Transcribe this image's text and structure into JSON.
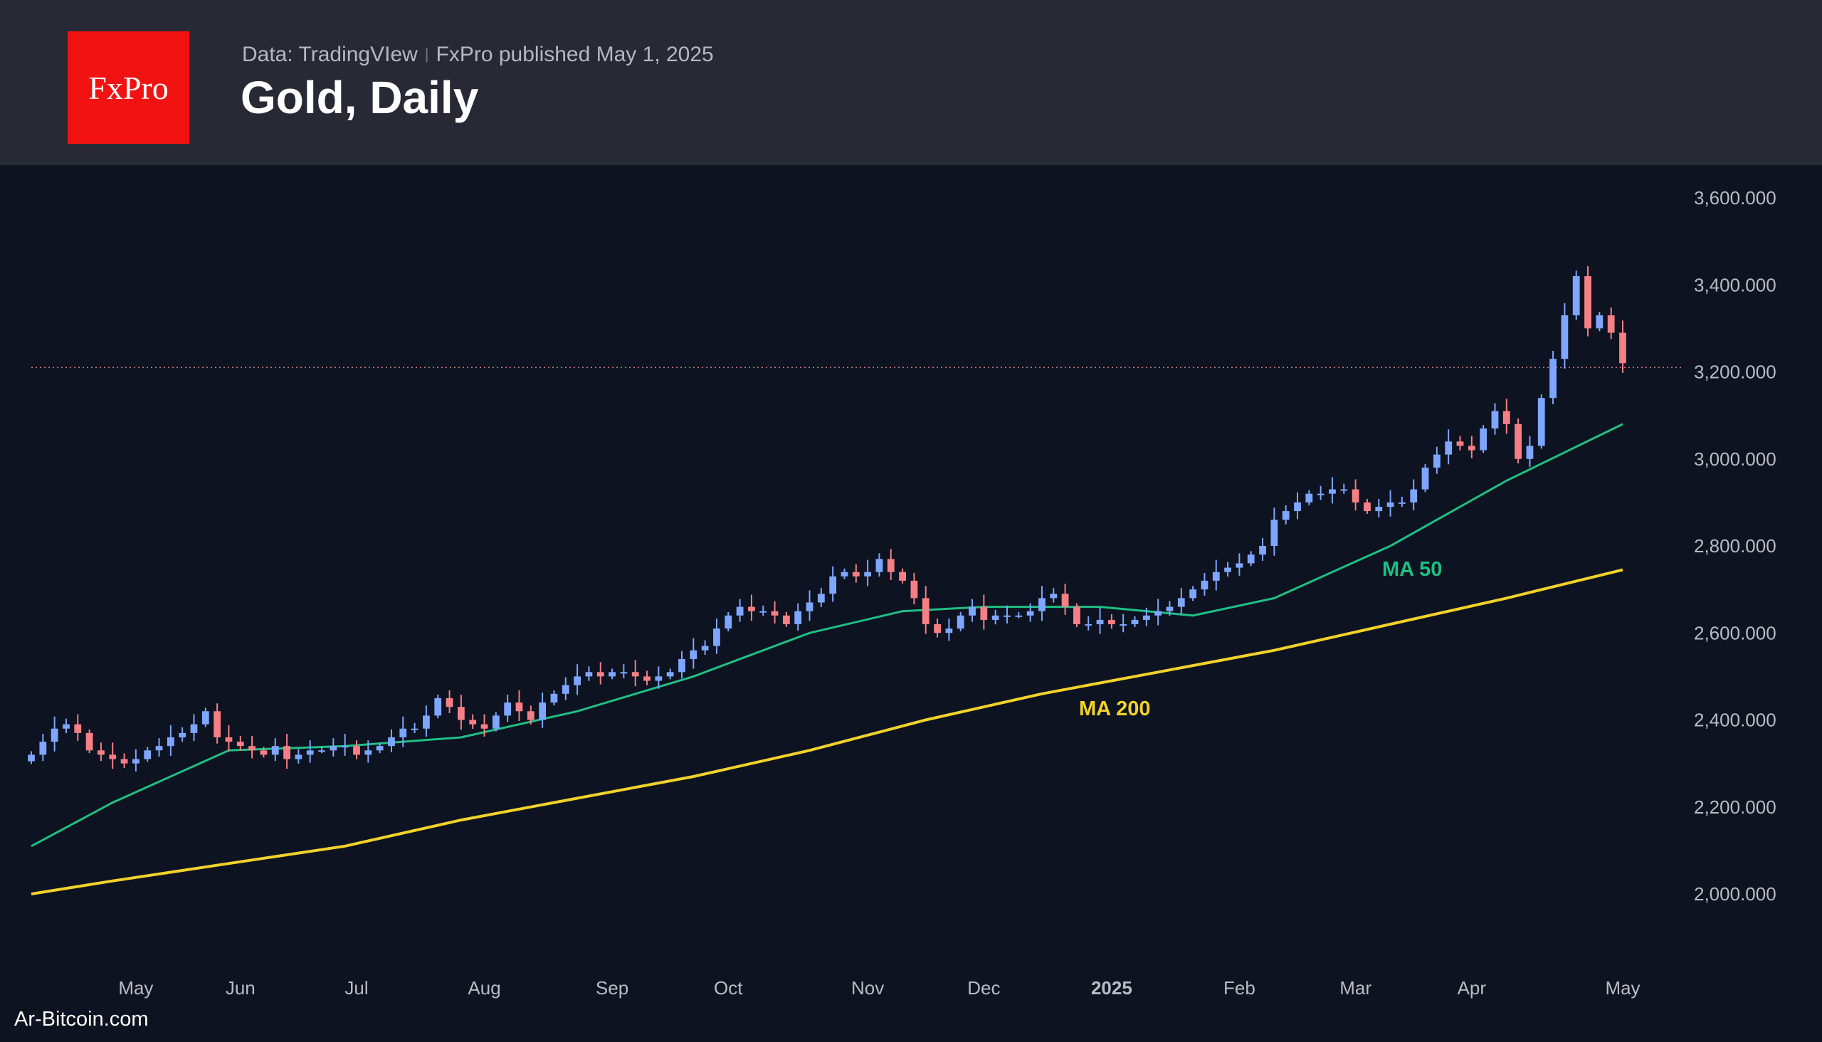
{
  "header": {
    "logo_text": "FxPro",
    "source": "Data: TradingVIew",
    "publisher": "FxPro published May 1, 2025",
    "title": "Gold, Daily"
  },
  "watermark": "Ar-Bitcoin.com",
  "chart_data": {
    "type": "candlestick",
    "title": "Gold, Daily",
    "ylim": [
      1800,
      3700
    ],
    "y_ticks": [
      3600,
      3400,
      3200,
      3000,
      2800,
      2600,
      2400,
      2200,
      2000
    ],
    "y_tick_labels": [
      "3,600.000",
      "3,400.000",
      "3,200.000",
      "3,000.000",
      "2,800.000",
      "2,600.000",
      "2,400.000",
      "2,200.000",
      "2,000.000"
    ],
    "x_tick_labels": [
      "May",
      "Jun",
      "Jul",
      "Aug",
      "Sep",
      "Oct",
      "Nov",
      "Dec",
      "2025",
      "Feb",
      "Mar",
      "Apr",
      "May"
    ],
    "x_tick_candle_index": [
      9,
      18,
      28,
      39,
      50,
      60,
      72,
      82,
      93,
      104,
      114,
      124,
      137
    ],
    "last_price_line": 3210,
    "colors": {
      "up": "#7ea6ff",
      "down": "#f57f85",
      "ma50": "#1fbf83",
      "ma200": "#f2d22a",
      "background": "#0d1320",
      "header": "#272a35",
      "logo": "#f31212"
    },
    "closes": [
      2320,
      2350,
      2380,
      2390,
      2370,
      2330,
      2320,
      2310,
      2300,
      2310,
      2330,
      2340,
      2360,
      2370,
      2390,
      2420,
      2360,
      2350,
      2340,
      2330,
      2320,
      2340,
      2310,
      2320,
      2330,
      2330,
      2340,
      2340,
      2320,
      2330,
      2340,
      2360,
      2380,
      2380,
      2410,
      2450,
      2430,
      2400,
      2390,
      2380,
      2410,
      2440,
      2420,
      2400,
      2440,
      2460,
      2480,
      2500,
      2510,
      2500,
      2510,
      2510,
      2500,
      2490,
      2500,
      2510,
      2540,
      2560,
      2570,
      2610,
      2640,
      2660,
      2650,
      2650,
      2640,
      2620,
      2650,
      2670,
      2690,
      2730,
      2740,
      2730,
      2740,
      2770,
      2740,
      2720,
      2680,
      2620,
      2600,
      2610,
      2640,
      2660,
      2630,
      2640,
      2640,
      2640,
      2650,
      2680,
      2690,
      2660,
      2620,
      2620,
      2630,
      2620,
      2620,
      2630,
      2640,
      2650,
      2660,
      2680,
      2700,
      2720,
      2740,
      2750,
      2760,
      2780,
      2800,
      2860,
      2880,
      2900,
      2920,
      2920,
      2930,
      2930,
      2900,
      2880,
      2890,
      2900,
      2900,
      2930,
      2980,
      3010,
      3040,
      3030,
      3020,
      3070,
      3110,
      3080,
      3000,
      3030,
      3140,
      3230,
      3330,
      3420,
      3300,
      3330,
      3290,
      3220
    ],
    "series": [
      {
        "name": "MA 50",
        "points": [
          [
            0,
            2110
          ],
          [
            7,
            2210
          ],
          [
            17,
            2330
          ],
          [
            27,
            2340
          ],
          [
            37,
            2360
          ],
          [
            47,
            2420
          ],
          [
            57,
            2500
          ],
          [
            67,
            2600
          ],
          [
            75,
            2650
          ],
          [
            82,
            2660
          ],
          [
            92,
            2660
          ],
          [
            100,
            2640
          ],
          [
            107,
            2680
          ],
          [
            117,
            2800
          ],
          [
            127,
            2950
          ],
          [
            137,
            3080
          ]
        ]
      },
      {
        "name": "MA 200",
        "points": [
          [
            0,
            2000
          ],
          [
            7,
            2030
          ],
          [
            17,
            2070
          ],
          [
            27,
            2110
          ],
          [
            37,
            2170
          ],
          [
            47,
            2220
          ],
          [
            57,
            2270
          ],
          [
            67,
            2330
          ],
          [
            77,
            2400
          ],
          [
            87,
            2460
          ],
          [
            97,
            2510
          ],
          [
            107,
            2560
          ],
          [
            117,
            2620
          ],
          [
            127,
            2680
          ],
          [
            137,
            2745
          ]
        ]
      }
    ]
  }
}
